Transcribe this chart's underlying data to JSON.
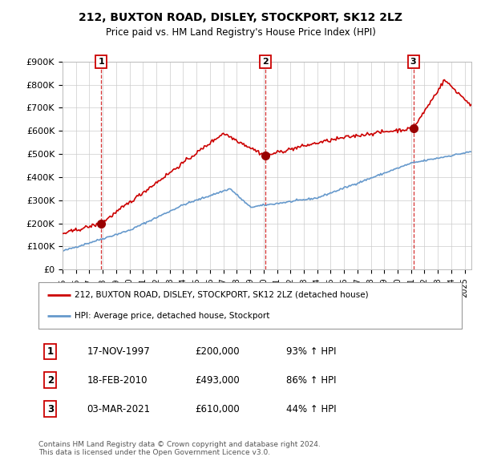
{
  "title": "212, BUXTON ROAD, DISLEY, STOCKPORT, SK12 2LZ",
  "subtitle": "Price paid vs. HM Land Registry's House Price Index (HPI)",
  "ylabel_ticks": [
    "£0",
    "£100K",
    "£200K",
    "£300K",
    "£400K",
    "£500K",
    "£600K",
    "£700K",
    "£800K",
    "£900K"
  ],
  "ylim": [
    0,
    900000
  ],
  "xlim_start": 1995.0,
  "xlim_end": 2025.5,
  "sale_dates": [
    1997.88,
    2010.12,
    2021.17
  ],
  "sale_prices": [
    200000,
    493000,
    610000
  ],
  "sale_labels": [
    "1",
    "2",
    "3"
  ],
  "legend_line1": "212, BUXTON ROAD, DISLEY, STOCKPORT, SK12 2LZ (detached house)",
  "legend_line2": "HPI: Average price, detached house, Stockport",
  "table_rows": [
    [
      "1",
      "17-NOV-1997",
      "£200,000",
      "93% ↑ HPI"
    ],
    [
      "2",
      "18-FEB-2010",
      "£493,000",
      "86% ↑ HPI"
    ],
    [
      "3",
      "03-MAR-2021",
      "£610,000",
      "44% ↑ HPI"
    ]
  ],
  "footer": "Contains HM Land Registry data © Crown copyright and database right 2024.\nThis data is licensed under the Open Government Licence v3.0.",
  "line_color_red": "#cc0000",
  "line_color_blue": "#6699cc",
  "dot_color": "#990000",
  "sale_line_color": "#cc0000",
  "background_color": "#ffffff",
  "grid_color": "#cccccc"
}
